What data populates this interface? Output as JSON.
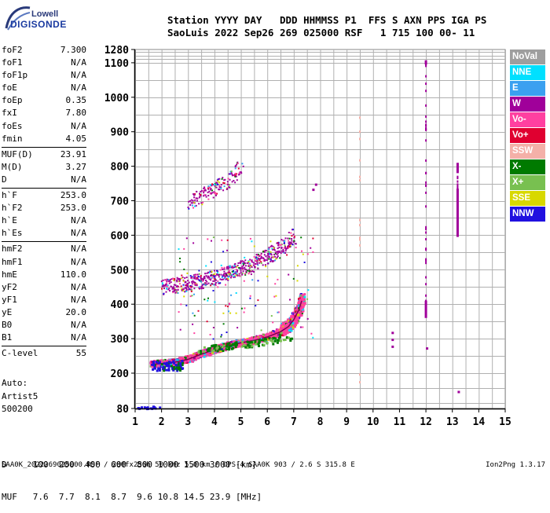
{
  "logo": {
    "top": "Lowell",
    "bottom": "DIGISONDE"
  },
  "header": {
    "line1": "Station YYYY DAY   DDD HHMMSS P1  FFS S AXN PPS IGA PS",
    "line2": "SaoLuis 2022 Sep26 269 025000 RSF   1 715 100 00- 11"
  },
  "params": [
    {
      "label": "foF2",
      "value": "7.300"
    },
    {
      "label": "foF1",
      "value": "N/A"
    },
    {
      "label": "foF1p",
      "value": "N/A"
    },
    {
      "label": "foE",
      "value": "N/A"
    },
    {
      "label": "foEp",
      "value": "0.35"
    },
    {
      "label": "fxI",
      "value": "7.80"
    },
    {
      "label": "foEs",
      "value": "N/A"
    },
    {
      "label": "fmin",
      "value": "4.05"
    },
    {
      "sep": true
    },
    {
      "label": "MUF(D)",
      "value": "23.91"
    },
    {
      "label": "M(D)",
      "value": "3.27"
    },
    {
      "label": "D",
      "value": "N/A"
    },
    {
      "sep": true
    },
    {
      "label": "h`F",
      "value": "253.0"
    },
    {
      "label": "h`F2",
      "value": "253.0"
    },
    {
      "label": "h`E",
      "value": "N/A"
    },
    {
      "label": "h`Es",
      "value": "N/A"
    },
    {
      "sep": true
    },
    {
      "label": "hmF2",
      "value": "N/A"
    },
    {
      "label": "hmF1",
      "value": "N/A"
    },
    {
      "label": "hmE",
      "value": "110.0"
    },
    {
      "label": "yF2",
      "value": "N/A"
    },
    {
      "label": "yF1",
      "value": "N/A"
    },
    {
      "label": "yE",
      "value": "20.0"
    },
    {
      "label": "B0",
      "value": "N/A"
    },
    {
      "label": "B1",
      "value": "N/A"
    },
    {
      "sep": true
    },
    {
      "label": "C-level",
      "value": "55"
    }
  ],
  "auto": {
    "line1": "Auto:",
    "line2": "Artist5",
    "line3": "500200"
  },
  "legend": [
    {
      "label": "NoVal",
      "color": "#9e9e9e"
    },
    {
      "label": "NNE",
      "color": "#00e0ff"
    },
    {
      "label": "E",
      "color": "#3aa0f0"
    },
    {
      "label": "W",
      "color": "#a0009a"
    },
    {
      "label": "Vo-",
      "color": "#ff40a0"
    },
    {
      "label": "Vo+",
      "color": "#e00030"
    },
    {
      "label": "SSW",
      "color": "#f4b0a8"
    },
    {
      "label": "X-",
      "color": "#007a00"
    },
    {
      "label": "X+",
      "color": "#78c050"
    },
    {
      "label": "SSE",
      "color": "#d8d800"
    },
    {
      "label": "NNW",
      "color": "#2010e0"
    }
  ],
  "bottom_table": {
    "row1": "D     100  200  400  600  800 1000 1500 3000 [km]",
    "row2": "MUF   7.6  7.7  8.1  8.7  9.6 10.8 14.5 23.9 [MHz]"
  },
  "footer": {
    "left": "SAA0K_2022269025000.RSF / 280fx256h 50 kHz 5.0 km / DPS-4 SAA0K 903 / 2.6 S 315.8 E",
    "right": "Ion2Png 1.3.17"
  },
  "chart_data": {
    "type": "scatter",
    "xlim": [
      1,
      15
    ],
    "ylim": [
      80,
      1280
    ],
    "xticks": [
      1,
      2,
      3,
      4,
      5,
      6,
      7,
      8,
      9,
      10,
      11,
      12,
      13,
      14,
      15
    ],
    "yticks": [
      80,
      200,
      300,
      400,
      500,
      600,
      700,
      800,
      900,
      1000,
      1100,
      1280
    ],
    "grid": true,
    "series": [
      {
        "name": "F-trace",
        "color": "#ff40a0",
        "x": [
          1.6,
          2.0,
          2.5,
          3.0,
          3.5,
          4.0,
          4.5,
          5.0,
          5.5,
          6.0,
          6.5,
          6.8,
          7.0,
          7.2,
          7.3
        ],
        "y": [
          225,
          228,
          232,
          240,
          255,
          268,
          280,
          288,
          295,
          305,
          320,
          335,
          355,
          385,
          410
        ]
      },
      {
        "name": "F-multiple",
        "color": "#a0009a",
        "x": [
          2.0,
          2.5,
          3.0,
          3.5,
          4.0,
          4.5,
          5.0,
          5.5,
          6.0,
          6.5,
          7.0
        ],
        "y": [
          450,
          455,
          462,
          470,
          480,
          492,
          505,
          520,
          540,
          565,
          600
        ]
      },
      {
        "name": "F-triple",
        "color": "#a0009a",
        "x": [
          3.0,
          3.5,
          4.0,
          4.5,
          5.0
        ],
        "y": [
          700,
          715,
          735,
          760,
          800
        ]
      },
      {
        "name": "SSW-line",
        "color": "#f4b0a8",
        "x": [
          9.5,
          9.5,
          9.5
        ],
        "y": [
          150,
          550,
          950
        ]
      },
      {
        "name": "W-line-12",
        "color": "#a0009a",
        "x": [
          12.0,
          12.0
        ],
        "y": [
          360,
          1120
        ]
      },
      {
        "name": "W-line-13",
        "color": "#a0009a",
        "x": [
          13.2,
          13.2
        ],
        "y": [
          600,
          800
        ]
      }
    ]
  }
}
